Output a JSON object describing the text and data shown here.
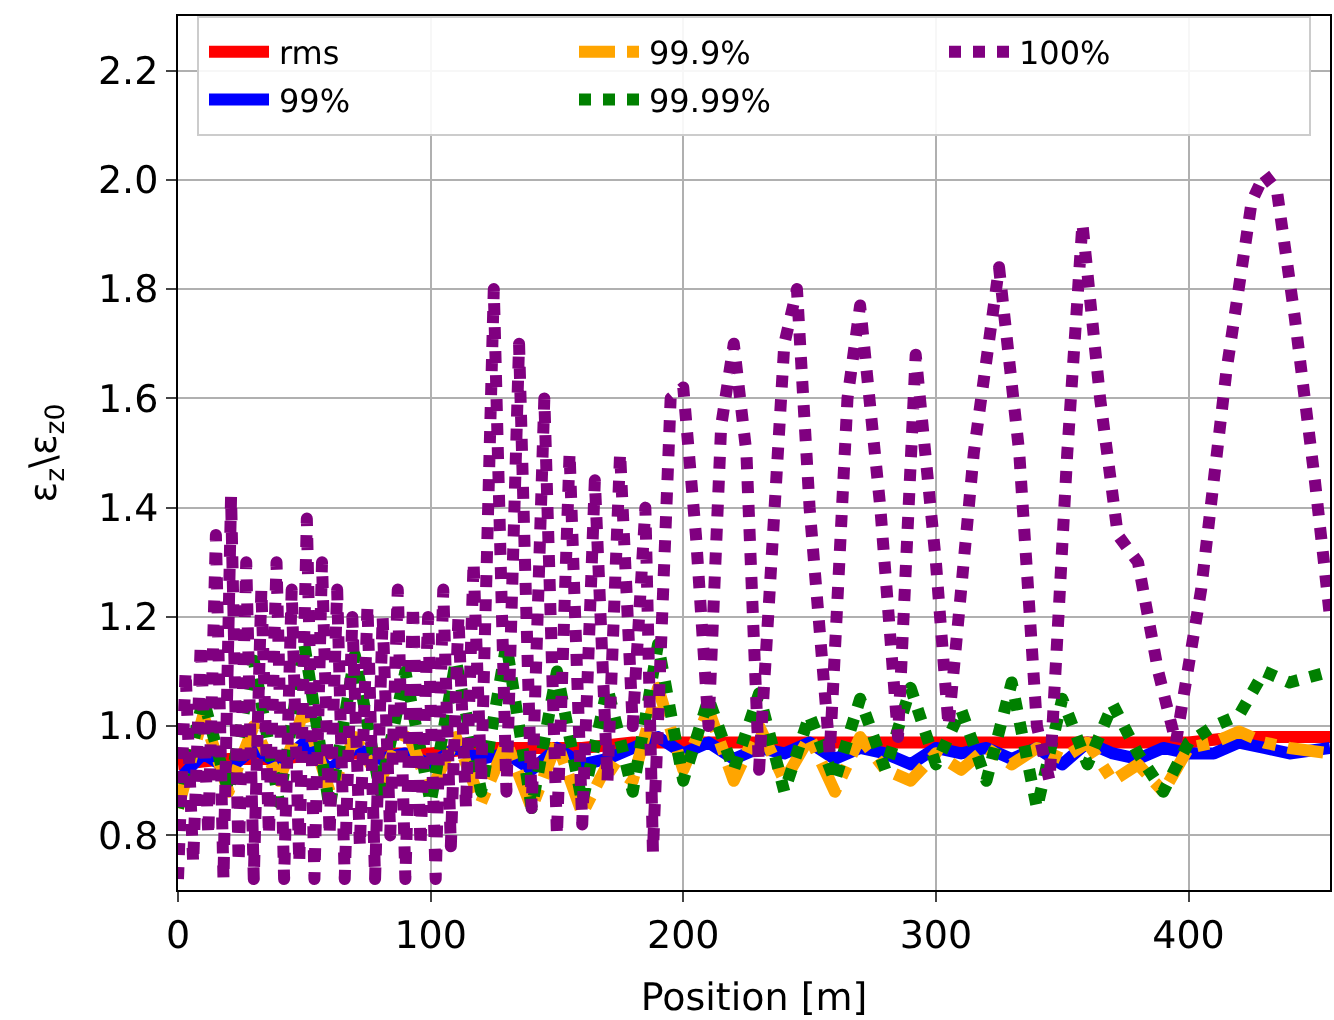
{
  "chart_data": {
    "type": "line",
    "xlabel": "Position [m]",
    "ylabel": "ε$_{z}$\\ε$_{z0}$",
    "xlim": [
      0,
      456
    ],
    "ylim": [
      0.7,
      2.3
    ],
    "xticks": [
      0,
      100,
      200,
      300,
      400
    ],
    "yticks": [
      {
        "value": 0.8,
        "label": "0.8"
      },
      {
        "value": 1.0,
        "label": "1.0"
      },
      {
        "value": 1.2,
        "label": "1.2"
      },
      {
        "value": 1.4,
        "label": "1.4"
      },
      {
        "value": 1.6,
        "label": "1.6"
      },
      {
        "value": 1.8,
        "label": "1.8"
      },
      {
        "value": 2.0,
        "label": "2.0"
      },
      {
        "value": 2.2,
        "label": "2.2"
      }
    ],
    "grid": true,
    "legend": "top",
    "marker": "none",
    "series": [
      {
        "name": "rms",
        "color": "#ff0000",
        "line_style": "solid",
        "x": [
          0,
          20,
          40,
          60,
          80,
          100,
          120,
          140,
          160,
          180,
          200,
          220,
          240,
          260,
          280,
          300,
          320,
          340,
          360,
          380,
          400,
          420,
          440,
          456
        ],
        "values": [
          0.93,
          0.94,
          0.94,
          0.95,
          0.95,
          0.95,
          0.96,
          0.96,
          0.96,
          0.97,
          0.97,
          0.97,
          0.97,
          0.97,
          0.97,
          0.97,
          0.97,
          0.97,
          0.97,
          0.97,
          0.97,
          0.98,
          0.98,
          0.98
        ]
      },
      {
        "name": "99%",
        "color": "#0000ff",
        "line_style": "solid",
        "x": [
          0,
          10,
          20,
          30,
          40,
          50,
          60,
          70,
          80,
          90,
          100,
          110,
          120,
          130,
          140,
          150,
          160,
          170,
          180,
          190,
          200,
          210,
          220,
          230,
          240,
          250,
          260,
          270,
          280,
          290,
          300,
          310,
          320,
          330,
          340,
          350,
          360,
          370,
          380,
          390,
          400,
          410,
          420,
          430,
          440,
          456
        ],
        "values": [
          0.9,
          0.95,
          0.92,
          0.96,
          0.93,
          0.97,
          0.92,
          0.96,
          0.94,
          0.95,
          0.93,
          0.96,
          0.94,
          0.95,
          0.92,
          0.96,
          0.93,
          0.94,
          0.96,
          0.98,
          0.95,
          0.97,
          0.94,
          0.96,
          0.95,
          0.97,
          0.94,
          0.96,
          0.95,
          0.93,
          0.96,
          0.95,
          0.96,
          0.94,
          0.96,
          0.93,
          0.97,
          0.95,
          0.94,
          0.96,
          0.95,
          0.95,
          0.97,
          0.96,
          0.95,
          0.96
        ]
      },
      {
        "name": "99.9%",
        "color": "#ffa500",
        "line_style": "dashed",
        "x": [
          0,
          10,
          20,
          30,
          40,
          50,
          60,
          70,
          80,
          90,
          100,
          110,
          120,
          130,
          140,
          150,
          160,
          170,
          180,
          190,
          200,
          210,
          220,
          230,
          240,
          250,
          260,
          270,
          280,
          290,
          300,
          310,
          320,
          330,
          340,
          350,
          360,
          370,
          380,
          390,
          400,
          410,
          420,
          430,
          440,
          456
        ],
        "values": [
          0.85,
          1.02,
          0.88,
          1.0,
          0.9,
          1.03,
          0.88,
          0.98,
          0.9,
          1.0,
          0.88,
          0.98,
          0.86,
          0.97,
          0.85,
          0.97,
          0.84,
          0.93,
          0.9,
          1.07,
          0.92,
          1.03,
          0.9,
          1.0,
          0.9,
          0.98,
          0.88,
          0.98,
          0.92,
          0.9,
          0.95,
          0.92,
          0.96,
          0.93,
          0.96,
          0.94,
          0.97,
          0.9,
          0.93,
          0.88,
          0.96,
          0.97,
          0.99,
          0.97,
          0.96,
          0.95
        ]
      },
      {
        "name": "99.99%",
        "color": "#008000",
        "line_style": "dotted",
        "x": [
          0,
          10,
          20,
          30,
          40,
          50,
          60,
          70,
          80,
          90,
          100,
          110,
          120,
          130,
          140,
          150,
          160,
          170,
          180,
          190,
          200,
          210,
          220,
          230,
          240,
          250,
          260,
          270,
          280,
          290,
          300,
          310,
          320,
          330,
          340,
          350,
          360,
          370,
          380,
          390,
          400,
          410,
          420,
          430,
          440,
          456
        ],
        "values": [
          0.85,
          1.05,
          0.88,
          1.12,
          0.86,
          1.15,
          0.85,
          1.13,
          0.88,
          1.1,
          0.86,
          1.12,
          0.88,
          1.15,
          0.85,
          1.1,
          0.86,
          1.07,
          0.88,
          1.15,
          0.9,
          1.05,
          0.92,
          1.06,
          0.88,
          1.02,
          0.9,
          1.05,
          0.92,
          1.07,
          0.93,
          1.03,
          0.9,
          1.08,
          0.85,
          1.05,
          0.93,
          1.04,
          0.95,
          0.88,
          0.97,
          1.0,
          1.02,
          1.1,
          1.08,
          1.1
        ]
      },
      {
        "name": "100%",
        "color": "#800080",
        "line_style": "dotted",
        "x": [
          0,
          3,
          6,
          9,
          12,
          15,
          18,
          21,
          24,
          27,
          30,
          33,
          36,
          39,
          42,
          45,
          48,
          51,
          54,
          57,
          60,
          63,
          66,
          69,
          72,
          75,
          78,
          81,
          84,
          87,
          90,
          93,
          96,
          99,
          102,
          105,
          108,
          111,
          114,
          117,
          120,
          125,
          130,
          135,
          140,
          145,
          150,
          155,
          160,
          165,
          170,
          175,
          180,
          185,
          188,
          195,
          200,
          205,
          210,
          215,
          220,
          225,
          230,
          240,
          245,
          250,
          258,
          265,
          270,
          278,
          285,
          292,
          300,
          305,
          315,
          325,
          333,
          340,
          345,
          352,
          358,
          365,
          372,
          380,
          388,
          395,
          405,
          415,
          425,
          430,
          435,
          442,
          450,
          456
        ],
        "values": [
          0.72,
          1.1,
          0.75,
          1.15,
          0.8,
          1.35,
          0.72,
          1.42,
          0.75,
          1.3,
          0.72,
          1.25,
          0.8,
          1.3,
          0.72,
          1.25,
          0.75,
          1.38,
          0.72,
          1.3,
          0.8,
          1.25,
          0.72,
          1.2,
          0.78,
          1.22,
          0.72,
          1.2,
          0.8,
          1.25,
          0.72,
          1.22,
          0.78,
          1.2,
          0.72,
          1.25,
          0.78,
          1.2,
          0.85,
          1.3,
          0.9,
          1.8,
          0.88,
          1.7,
          0.85,
          1.6,
          0.8,
          1.5,
          0.82,
          1.45,
          0.9,
          1.5,
          1.0,
          1.4,
          0.77,
          1.6,
          1.62,
          1.35,
          1.0,
          1.55,
          1.7,
          1.5,
          0.92,
          1.7,
          1.8,
          1.4,
          0.95,
          1.6,
          1.77,
          1.4,
          0.98,
          1.68,
          1.3,
          1.0,
          1.5,
          1.84,
          1.5,
          1.0,
          0.9,
          1.5,
          1.92,
          1.6,
          1.35,
          1.3,
          1.1,
          0.97,
          1.25,
          1.65,
          1.96,
          2.01,
          1.98,
          1.75,
          1.45,
          1.2
        ]
      }
    ]
  }
}
